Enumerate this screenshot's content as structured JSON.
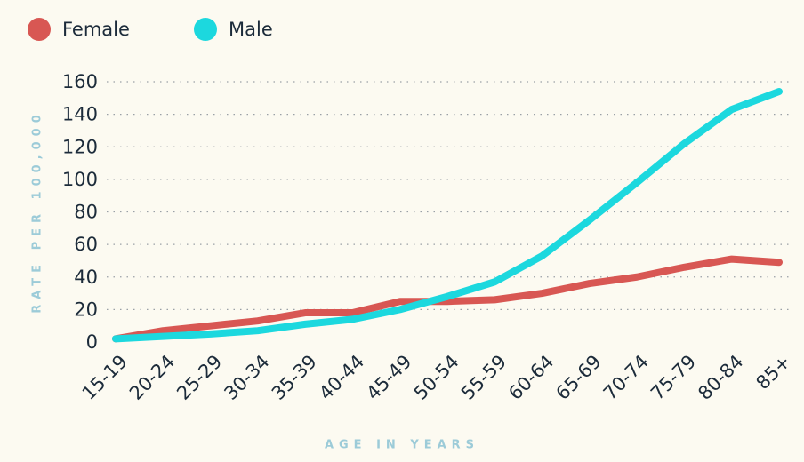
{
  "chart_data": {
    "type": "line",
    "x_label": "AGE IN YEARS",
    "y_label": "RATE PER 100,000",
    "categories": [
      "15-19",
      "20-24",
      "25-29",
      "30-34",
      "35-39",
      "40-44",
      "45-49",
      "50-54",
      "55-59",
      "60-64",
      "65-69",
      "70-74",
      "75-79",
      "80-84",
      "85+"
    ],
    "series": [
      {
        "name": "Female",
        "color": "#d85753",
        "values": [
          2,
          7,
          10,
          13,
          18,
          18,
          25,
          25,
          26,
          30,
          36,
          40,
          46,
          51,
          49
        ]
      },
      {
        "name": "Male",
        "color": "#1cd8de",
        "values": [
          2,
          3.5,
          5,
          7,
          11,
          14,
          20,
          28,
          37,
          53,
          75,
          98,
          122,
          143,
          154
        ]
      }
    ],
    "ylim": [
      0,
      160
    ],
    "yticks": [
      0,
      20,
      40,
      60,
      80,
      100,
      120,
      140,
      160
    ],
    "grid": true
  }
}
